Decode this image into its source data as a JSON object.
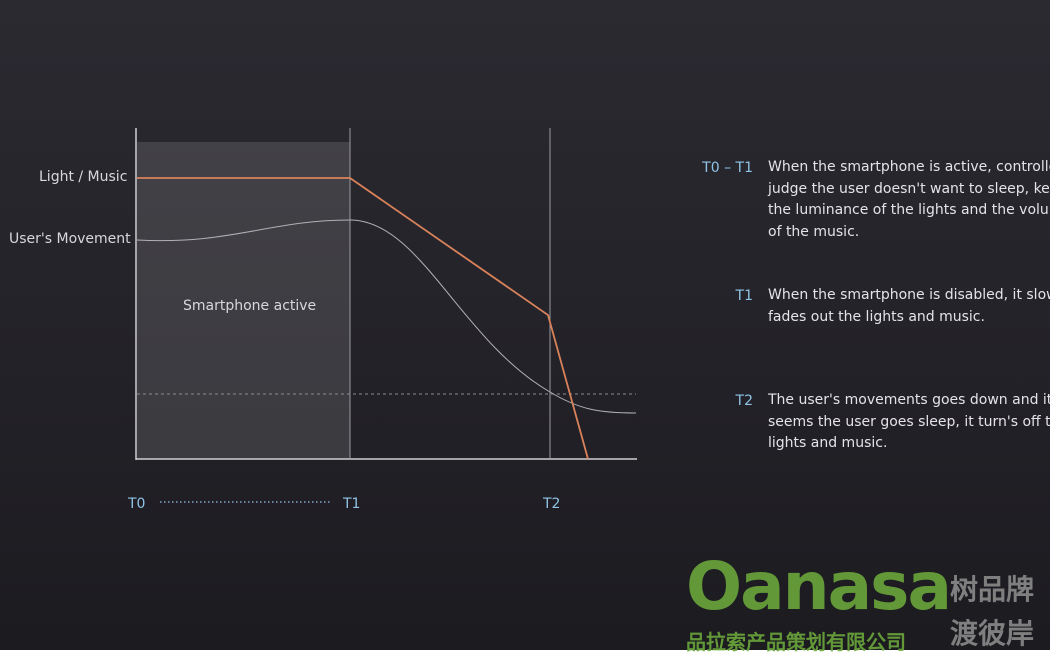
{
  "diagram": {
    "y_labels": [
      "Light / Music",
      "User's Movement"
    ],
    "region_label": "Smartphone active",
    "time_marks": [
      "T0",
      "T1",
      "T2"
    ],
    "notes": [
      {
        "key": "T0 – T1",
        "lines": [
          "When the smartphone is active, controller",
          "judge the user doesn't want to sleep, keep",
          "the luminance of the lights and the volume",
          "of the music."
        ]
      },
      {
        "key": "T1",
        "lines": [
          "When the smartphone is disabled, it slowly",
          "fades out the lights and music."
        ]
      },
      {
        "key": "T2",
        "lines": [
          "The user's movements goes down and it",
          "seems the user goes sleep, it turn's off the",
          "lights and music."
        ]
      }
    ]
  },
  "watermark": {
    "brand": "Oanasa",
    "tag1": "树品牌",
    "tag2": "渡彼岸",
    "company": "品拉索产品策划有限公司"
  }
}
